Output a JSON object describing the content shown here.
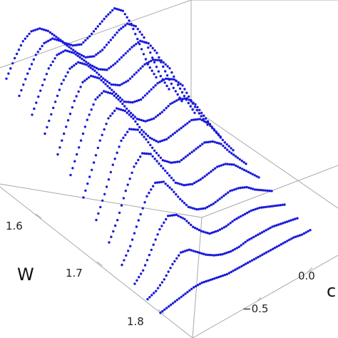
{
  "chart_data": {
    "type": "scatter3d",
    "marker_color": "#1a1adb",
    "box_color": "#a9a9a9",
    "xlabel": "W",
    "ylabel": "c",
    "zlabel": "",
    "x_ticks": [
      "1.6",
      "1.7",
      "1.8"
    ],
    "y_ticks": [
      "−0.5",
      "0.0"
    ],
    "xlim": [
      1.55,
      1.85
    ],
    "ylim": [
      -0.9,
      0.9
    ],
    "zlim": [
      0,
      1
    ],
    "grid": false,
    "series": [
      {
        "w": 1.56,
        "c": [
          -0.9,
          -0.8,
          -0.7,
          -0.6,
          -0.5,
          -0.4,
          -0.3,
          -0.2,
          -0.1,
          0.0,
          0.1,
          0.2,
          0.3,
          0.4,
          0.5,
          0.6,
          0.7,
          0.8,
          0.9
        ],
        "z": [
          0.64,
          0.73,
          0.8,
          0.83,
          0.82,
          0.78,
          0.72,
          0.66,
          0.62,
          0.6,
          0.62,
          0.65,
          0.68,
          0.7,
          0.66,
          0.56,
          0.42,
          0.28,
          0.18
        ]
      },
      {
        "w": 1.58,
        "c": [
          -0.9,
          -0.8,
          -0.7,
          -0.6,
          -0.5,
          -0.4,
          -0.3,
          -0.2,
          -0.1,
          0.0,
          0.1,
          0.2,
          0.3,
          0.4,
          0.5,
          0.6,
          0.7,
          0.8,
          0.9
        ],
        "z": [
          0.6,
          0.7,
          0.78,
          0.82,
          0.82,
          0.78,
          0.72,
          0.66,
          0.61,
          0.59,
          0.6,
          0.63,
          0.66,
          0.67,
          0.63,
          0.54,
          0.4,
          0.27,
          0.17
        ]
      },
      {
        "w": 1.6,
        "c": [
          -0.9,
          -0.8,
          -0.7,
          -0.6,
          -0.5,
          -0.4,
          -0.3,
          -0.2,
          -0.1,
          0.0,
          0.1,
          0.2,
          0.3,
          0.4,
          0.5,
          0.6,
          0.7,
          0.8,
          0.9
        ],
        "z": [
          0.55,
          0.66,
          0.76,
          0.81,
          0.81,
          0.77,
          0.71,
          0.65,
          0.6,
          0.57,
          0.58,
          0.6,
          0.62,
          0.63,
          0.59,
          0.51,
          0.38,
          0.26,
          0.16
        ]
      },
      {
        "w": 1.62,
        "c": [
          -0.9,
          -0.8,
          -0.7,
          -0.6,
          -0.5,
          -0.4,
          -0.3,
          -0.2,
          -0.1,
          0.0,
          0.1,
          0.2,
          0.3,
          0.4,
          0.5,
          0.6,
          0.7,
          0.8,
          0.9
        ],
        "z": [
          0.5,
          0.62,
          0.73,
          0.79,
          0.8,
          0.76,
          0.7,
          0.63,
          0.57,
          0.54,
          0.54,
          0.56,
          0.58,
          0.58,
          0.55,
          0.48,
          0.36,
          0.25,
          0.15
        ]
      },
      {
        "w": 1.64,
        "c": [
          -0.9,
          -0.8,
          -0.7,
          -0.6,
          -0.5,
          -0.4,
          -0.3,
          -0.2,
          -0.1,
          0.0,
          0.1,
          0.2,
          0.3,
          0.4,
          0.5,
          0.6,
          0.7,
          0.8,
          0.9
        ],
        "z": [
          0.44,
          0.57,
          0.69,
          0.77,
          0.78,
          0.74,
          0.67,
          0.6,
          0.53,
          0.5,
          0.49,
          0.51,
          0.53,
          0.53,
          0.5,
          0.44,
          0.33,
          0.23,
          0.14
        ]
      },
      {
        "w": 1.66,
        "c": [
          -0.9,
          -0.8,
          -0.7,
          -0.6,
          -0.5,
          -0.4,
          -0.3,
          -0.2,
          -0.1,
          0.0,
          0.1,
          0.2,
          0.3,
          0.4,
          0.5,
          0.6,
          0.7,
          0.8,
          0.9
        ],
        "z": [
          0.38,
          0.51,
          0.64,
          0.73,
          0.75,
          0.71,
          0.64,
          0.56,
          0.49,
          0.45,
          0.44,
          0.45,
          0.47,
          0.47,
          0.45,
          0.39,
          0.3,
          0.21,
          0.13
        ]
      },
      {
        "w": 1.68,
        "c": [
          -0.9,
          -0.8,
          -0.7,
          -0.6,
          -0.5,
          -0.4,
          -0.3,
          -0.2,
          -0.1,
          0.0,
          0.1,
          0.2,
          0.3,
          0.4,
          0.5,
          0.6,
          0.7,
          0.8,
          0.9
        ],
        "z": [
          0.31,
          0.44,
          0.58,
          0.68,
          0.71,
          0.67,
          0.6,
          0.51,
          0.44,
          0.39,
          0.38,
          0.39,
          0.4,
          0.41,
          0.39,
          0.34,
          0.26,
          0.18,
          0.11
        ]
      },
      {
        "w": 1.7,
        "c": [
          -0.9,
          -0.8,
          -0.7,
          -0.6,
          -0.5,
          -0.4,
          -0.3,
          -0.2,
          -0.1,
          0.0,
          0.1,
          0.2,
          0.3,
          0.4,
          0.5,
          0.6,
          0.7,
          0.8,
          0.9
        ],
        "z": [
          0.24,
          0.36,
          0.5,
          0.61,
          0.65,
          0.62,
          0.54,
          0.45,
          0.37,
          0.33,
          0.31,
          0.32,
          0.33,
          0.34,
          0.32,
          0.28,
          0.21,
          0.15,
          0.09
        ]
      },
      {
        "w": 1.72,
        "c": [
          -0.9,
          -0.8,
          -0.7,
          -0.6,
          -0.5,
          -0.4,
          -0.3,
          -0.2,
          -0.1,
          0.0,
          0.1,
          0.2,
          0.3,
          0.4,
          0.5,
          0.6,
          0.7,
          0.8,
          0.9
        ],
        "z": [
          0.17,
          0.27,
          0.41,
          0.52,
          0.57,
          0.54,
          0.46,
          0.38,
          0.3,
          0.26,
          0.24,
          0.24,
          0.25,
          0.26,
          0.25,
          0.22,
          0.17,
          0.12,
          0.07
        ]
      },
      {
        "w": 1.74,
        "c": [
          -0.9,
          -0.8,
          -0.7,
          -0.6,
          -0.5,
          -0.4,
          -0.3,
          -0.2,
          -0.1,
          0.0,
          0.1,
          0.2,
          0.3,
          0.4,
          0.5,
          0.6,
          0.7,
          0.8,
          0.9
        ],
        "z": [
          0.1,
          0.18,
          0.3,
          0.41,
          0.46,
          0.44,
          0.37,
          0.29,
          0.22,
          0.18,
          0.16,
          0.16,
          0.17,
          0.18,
          0.17,
          0.15,
          0.11,
          0.08,
          0.05
        ]
      },
      {
        "w": 1.76,
        "c": [
          -0.9,
          -0.8,
          -0.7,
          -0.6,
          -0.5,
          -0.4,
          -0.3,
          -0.2,
          -0.1,
          0.0,
          0.1,
          0.2,
          0.3,
          0.4,
          0.5,
          0.6,
          0.7,
          0.8,
          0.9
        ],
        "z": [
          0.05,
          0.1,
          0.19,
          0.28,
          0.33,
          0.31,
          0.26,
          0.19,
          0.14,
          0.1,
          0.09,
          0.09,
          0.1,
          0.1,
          0.1,
          0.09,
          0.07,
          0.05,
          0.03
        ]
      },
      {
        "w": 1.78,
        "c": [
          -0.9,
          -0.8,
          -0.7,
          -0.6,
          -0.5,
          -0.4,
          -0.3,
          -0.2,
          -0.1,
          0.0,
          0.1,
          0.2,
          0.3,
          0.4,
          0.5,
          0.6,
          0.7,
          0.8,
          0.9
        ],
        "z": [
          0.02,
          0.04,
          0.08,
          0.14,
          0.18,
          0.17,
          0.13,
          0.09,
          0.06,
          0.04,
          0.03,
          0.03,
          0.04,
          0.04,
          0.04,
          0.04,
          0.03,
          0.02,
          0.01
        ]
      },
      {
        "w": 1.8,
        "c": [
          -0.9,
          -0.8,
          -0.7,
          -0.6,
          -0.5,
          -0.4,
          -0.3,
          -0.2,
          -0.1,
          0.0,
          0.1,
          0.2,
          0.3,
          0.4,
          0.5,
          0.6,
          0.7,
          0.8,
          0.9
        ],
        "z": [
          0.0,
          0.01,
          0.02,
          0.03,
          0.04,
          0.04,
          0.03,
          0.02,
          0.01,
          0.01,
          0.01,
          0.01,
          0.01,
          0.01,
          0.01,
          0.01,
          0.01,
          0.0,
          0.0
        ]
      }
    ]
  }
}
